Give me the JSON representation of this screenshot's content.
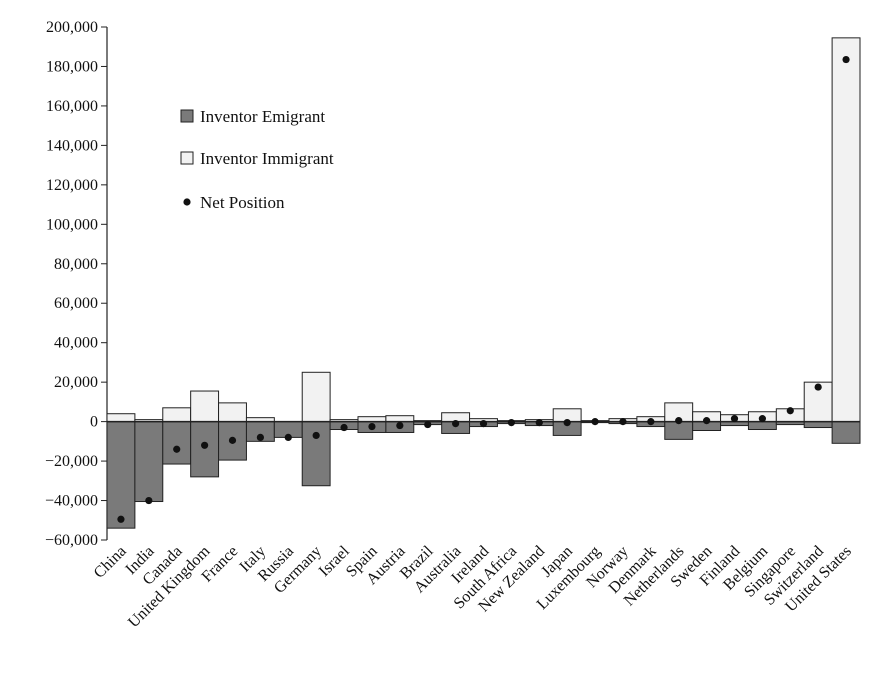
{
  "chart_data": {
    "type": "bar",
    "categories": [
      "China",
      "India",
      "Canada",
      "United Kingdom",
      "France",
      "Italy",
      "Russia",
      "Germany",
      "Israel",
      "Spain",
      "Austria",
      "Brazil",
      "Australia",
      "Ireland",
      "South Africa",
      "New Zealand",
      "Japan",
      "Luxembourg",
      "Norway",
      "Denmark",
      "Netherlands",
      "Sweden",
      "Finland",
      "Belgium",
      "Singapore",
      "Switzerland",
      "United States"
    ],
    "series": [
      {
        "name": "Inventor Emigrant",
        "values": [
          -54000,
          -40500,
          -21500,
          -28000,
          -19500,
          -10000,
          -8000,
          -32500,
          -4000,
          -5500,
          -5500,
          -1500,
          -6000,
          -2500,
          -1000,
          -2000,
          -7000,
          -500,
          -1000,
          -2500,
          -9000,
          -4500,
          -2000,
          -4000,
          -1500,
          -3000,
          -11000
        ],
        "color": "#7a7a7a"
      },
      {
        "name": "Inventor Immigrant",
        "values": [
          4000,
          1000,
          7000,
          15500,
          9500,
          2000,
          0,
          25000,
          1000,
          2500,
          3000,
          500,
          4500,
          1500,
          500,
          1000,
          6500,
          500,
          1500,
          2500,
          9500,
          5000,
          3500,
          5000,
          6500,
          20000,
          194500
        ],
        "color": "#f2f2f2"
      },
      {
        "name": "Net Position",
        "values": [
          -49500,
          -40000,
          -14000,
          -12000,
          -9500,
          -8000,
          -8000,
          -7000,
          -3000,
          -2500,
          -2000,
          -1500,
          -1000,
          -1000,
          -500,
          -500,
          -500,
          0,
          0,
          0,
          500,
          500,
          1500,
          1500,
          5500,
          17500,
          183500
        ],
        "color": "#111111"
      }
    ],
    "yticks": [
      -60000,
      -40000,
      -20000,
      0,
      20000,
      40000,
      60000,
      80000,
      100000,
      120000,
      140000,
      160000,
      180000,
      200000
    ],
    "ytick_labels": [
      "−60,000",
      "−40,000",
      "−20,000",
      "0",
      "20,000",
      "40,000",
      "60,000",
      "80,000",
      "100,000",
      "120,000",
      "140,000",
      "160,000",
      "180,000",
      "200,000"
    ],
    "ylim": [
      -60000,
      200000
    ],
    "grid": false,
    "legend_position": "top-left"
  }
}
